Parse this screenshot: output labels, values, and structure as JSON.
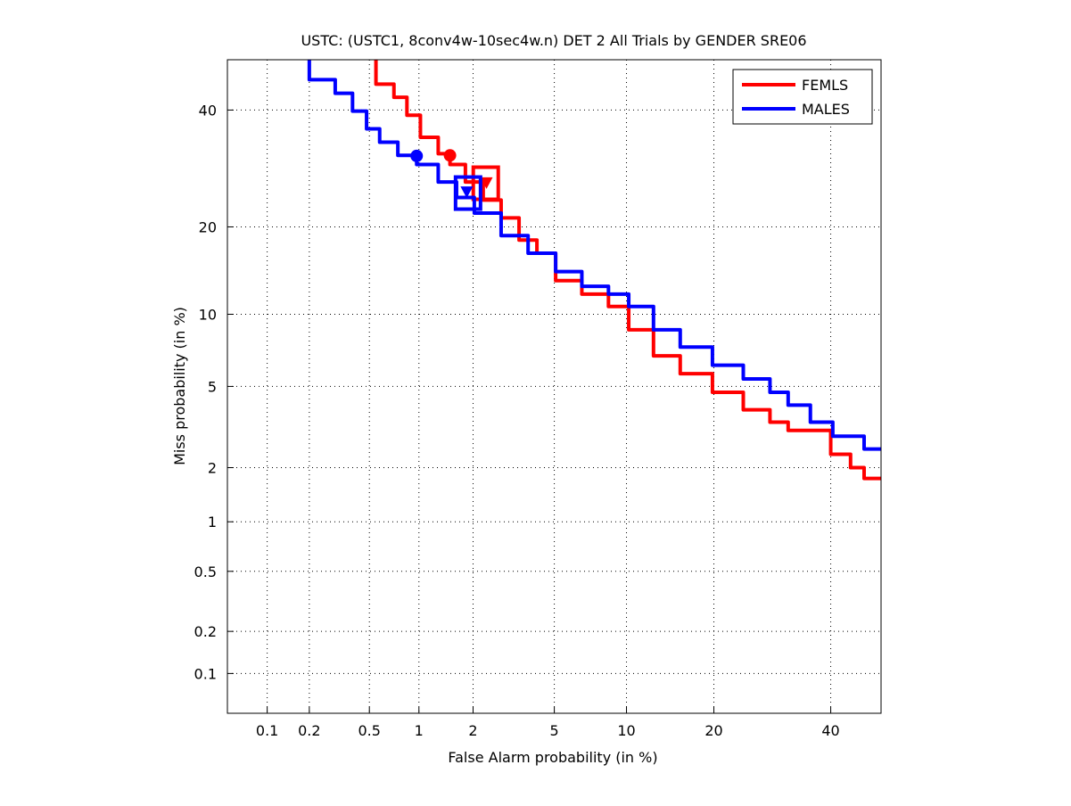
{
  "chart_data": {
    "type": "line",
    "title": "USTC: (USTC1, 8conv4w-10sec4w.n) DET 2 All Trials by GENDER SRE06",
    "xlabel": "False Alarm probability (in %)",
    "ylabel": "Miss probability (in %)",
    "scale": "probit",
    "xlim": [
      0.05,
      50
    ],
    "ylim": [
      0.05,
      50
    ],
    "grid": true,
    "legend_position": "top-right",
    "xticks": [
      0.1,
      0.2,
      0.5,
      1,
      2,
      5,
      10,
      20,
      40
    ],
    "xtick_labels": [
      "0.1",
      "0.2",
      "0.5",
      "1",
      "2",
      "5",
      "10",
      "20",
      "40"
    ],
    "yticks": [
      0.1,
      0.2,
      0.5,
      1,
      2,
      5,
      10,
      20,
      40
    ],
    "ytick_labels": [
      "0.1",
      "0.2",
      "0.5",
      "1",
      "2",
      "5",
      "10",
      "20",
      "40"
    ],
    "series": [
      {
        "name": "FEMLS",
        "color": "#ff0000",
        "x": [
          0.55,
          0.71,
          0.85,
          1.02,
          1.29,
          1.5,
          1.82,
          2.26,
          2.79,
          3.42,
          4.16,
          5.07,
          6.6,
          8.5,
          10.2,
          12.6,
          15.6,
          19.8,
          24.4,
          28.8,
          32.0,
          40,
          43.9,
          46.6,
          50
        ],
        "y": [
          50,
          45.1,
          42.5,
          39.0,
          34.8,
          31.8,
          29.9,
          26.9,
          24.0,
          21.3,
          18.2,
          16.5,
          13.3,
          11.9,
          10.7,
          8.7,
          6.8,
          5.7,
          4.7,
          3.9,
          3.4,
          3.1,
          2.35,
          2.0,
          1.75
        ],
        "markers": {
          "circle": {
            "x": 1.5,
            "y": 31.5
          },
          "square": {
            "x": 2.33,
            "y": 26.7
          },
          "triangle": {
            "x": 2.35,
            "y": 26.8
          }
        }
      },
      {
        "name": "MALES",
        "color": "#0000ff",
        "x": [
          0.2,
          0.3,
          0.39,
          0.48,
          0.58,
          0.75,
          0.97,
          1.29,
          1.63,
          2.03,
          2.79,
          3.78,
          5.07,
          6.6,
          8.5,
          10.2,
          12.6,
          15.6,
          19.8,
          24.4,
          28.8,
          32.0,
          36.1,
          40.4,
          42.1,
          46.6,
          50
        ],
        "y": [
          50,
          46,
          43.3,
          39.8,
          36.4,
          33.9,
          31.5,
          29.9,
          26.9,
          24.4,
          22.0,
          18.8,
          16.5,
          14.3,
          12.7,
          11.9,
          10.7,
          8.7,
          7.4,
          6.2,
          5.4,
          4.7,
          4.1,
          3.4,
          2.9,
          2.9,
          2.5
        ],
        "markers": {
          "circle": {
            "x": 0.97,
            "y": 31.4
          },
          "square": {
            "x": 1.88,
            "y": 25.1
          },
          "triangle": {
            "x": 1.85,
            "y": 25.3
          }
        }
      }
    ]
  }
}
